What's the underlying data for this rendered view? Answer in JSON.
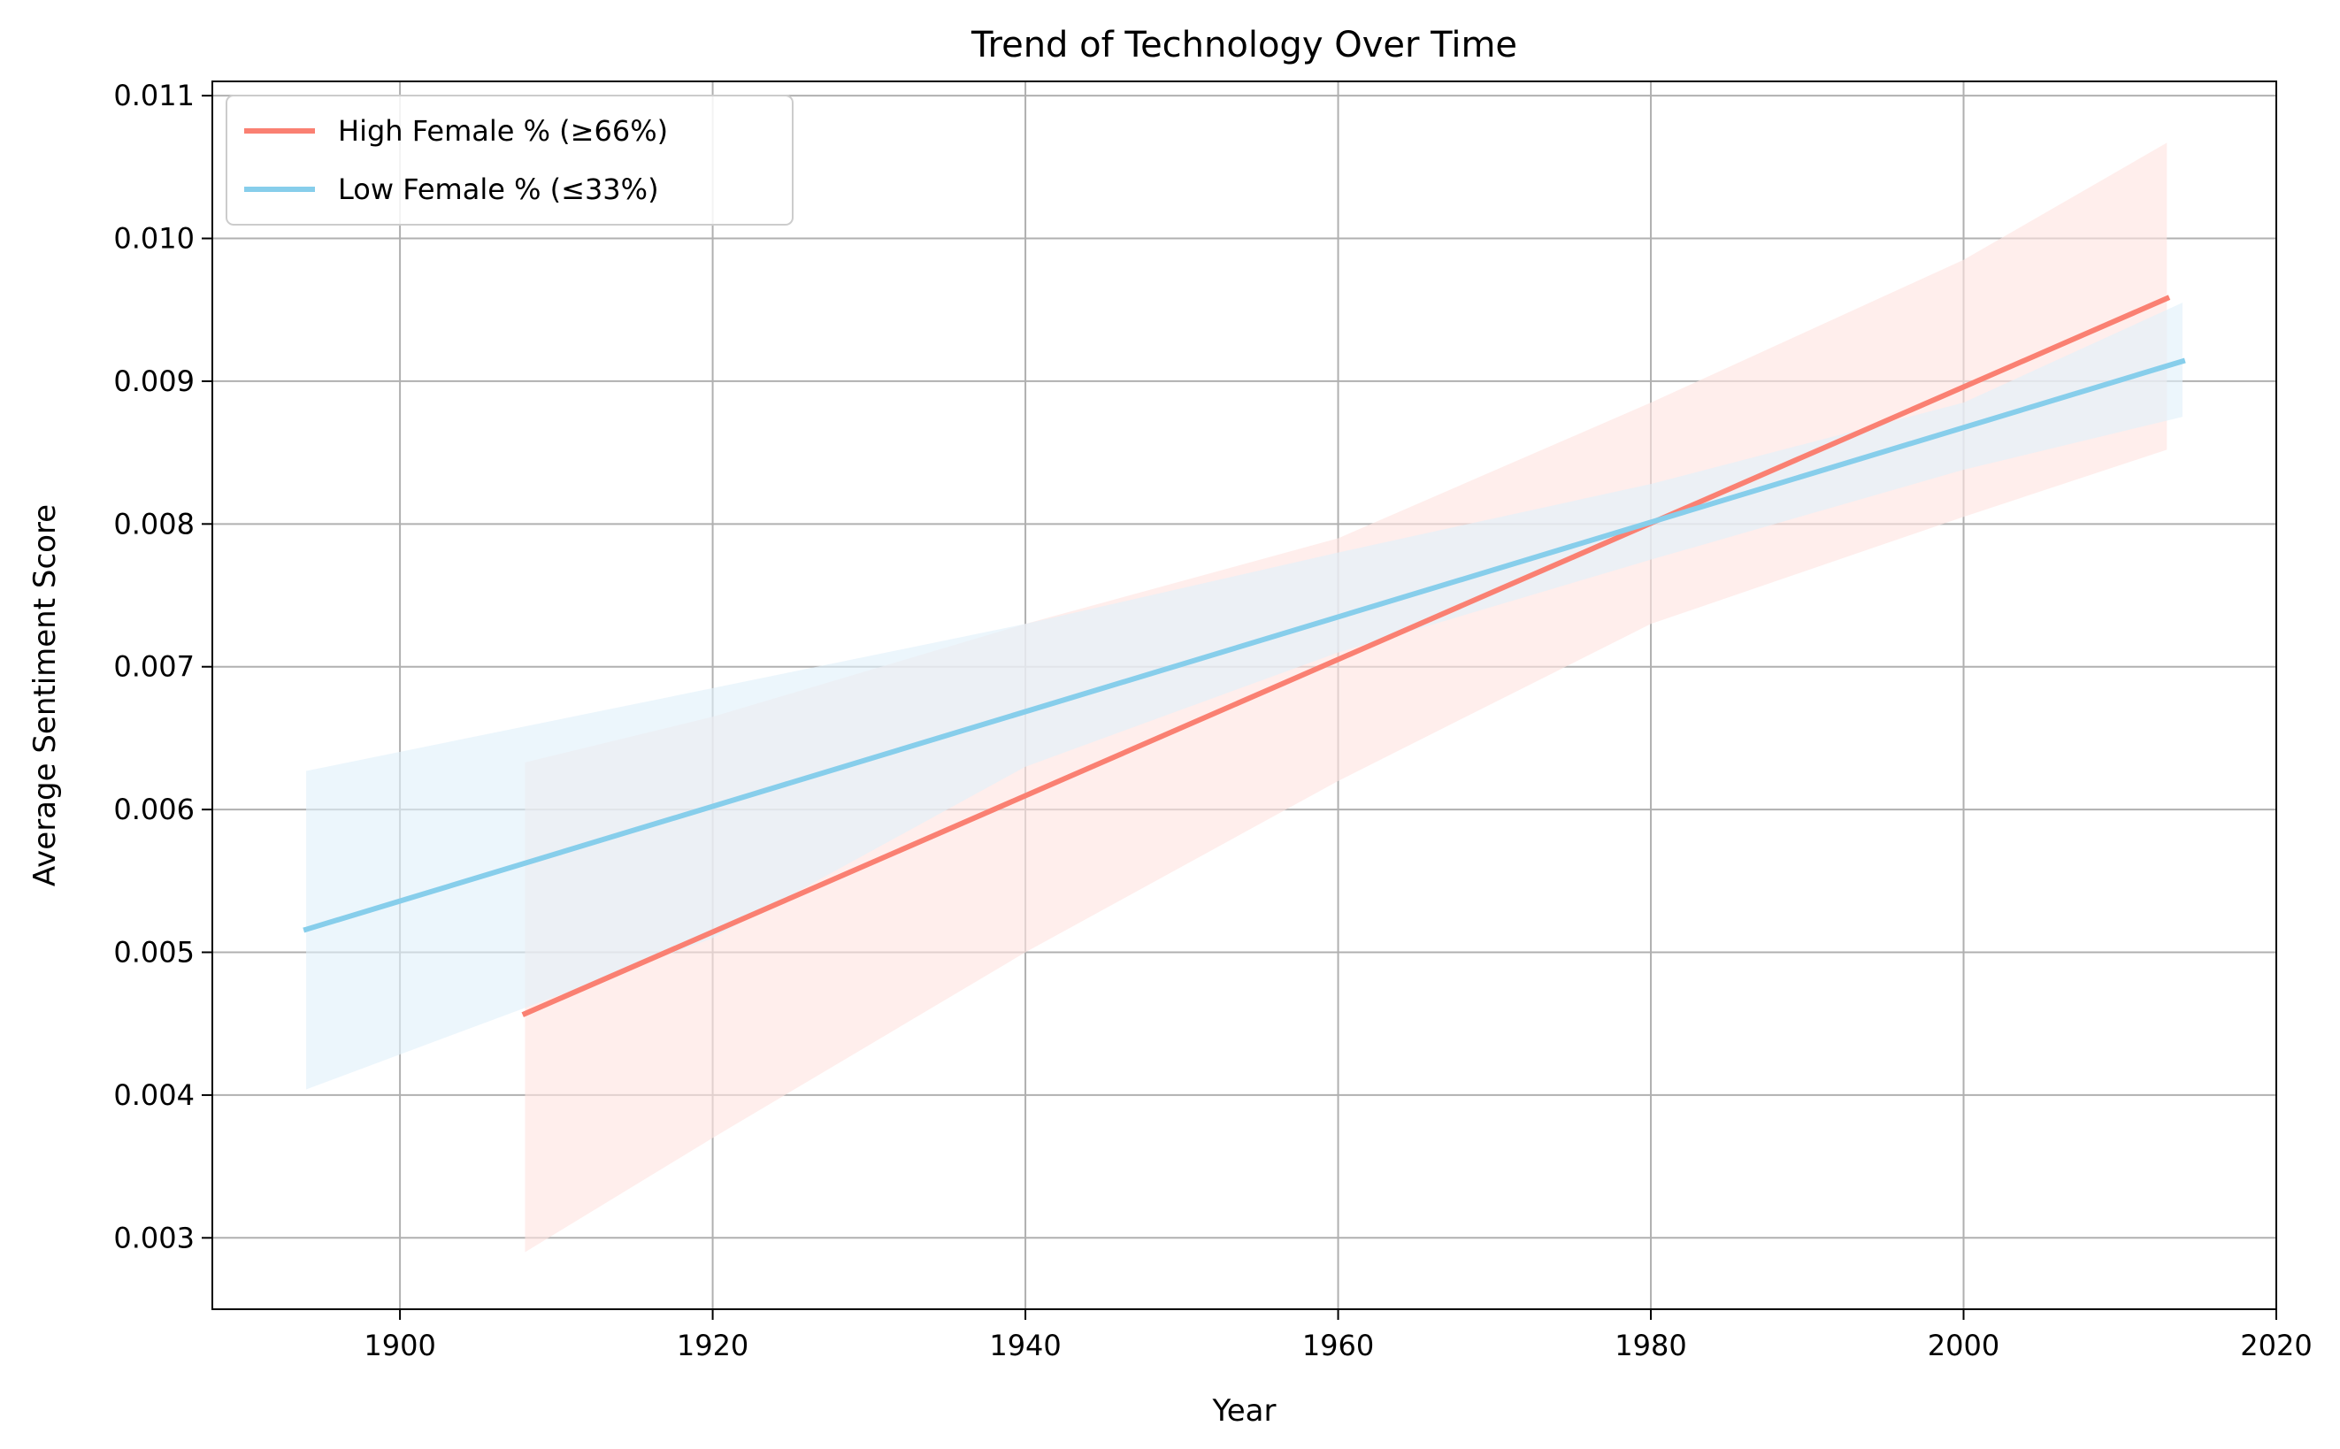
{
  "chart_data": {
    "type": "line",
    "title": "Trend of Technology Over Time",
    "xlabel": "Year",
    "ylabel": "Average Sentiment Score",
    "xlim": [
      1888,
      2020
    ],
    "ylim": [
      0.0025,
      0.0111
    ],
    "xticks": [
      1900,
      1920,
      1940,
      1960,
      1980,
      2000,
      2020
    ],
    "yticks": [
      0.003,
      0.004,
      0.005,
      0.006,
      0.007,
      0.008,
      0.009,
      0.01,
      0.011
    ],
    "ytick_labels": [
      "0.003",
      "0.004",
      "0.005",
      "0.006",
      "0.007",
      "0.008",
      "0.009",
      "0.010",
      "0.011"
    ],
    "grid": true,
    "legend_position": "upper-left",
    "series": [
      {
        "name": "High Female % (≥66%)",
        "color": "#fa8072",
        "band_color": "#ffe4e1",
        "x": [
          1908,
          2013
        ],
        "y": [
          0.00457,
          0.00958
        ],
        "band_x": [
          1908,
          1920,
          1940,
          1960,
          1980,
          2000,
          2013
        ],
        "band_lower": [
          0.0029,
          0.0037,
          0.005,
          0.0062,
          0.0073,
          0.00805,
          0.00852
        ],
        "band_upper": [
          0.00633,
          0.00665,
          0.0073,
          0.0079,
          0.00885,
          0.00985,
          0.01067
        ]
      },
      {
        "name": "Low Female % (≤33%)",
        "color": "#87ceeb",
        "band_color": "#e0f0fa",
        "x": [
          1894,
          2014
        ],
        "y": [
          0.00516,
          0.00914
        ],
        "band_x": [
          1894,
          1920,
          1940,
          1960,
          1980,
          2000,
          2014
        ],
        "band_lower": [
          0.00404,
          0.0051,
          0.0063,
          0.0071,
          0.00775,
          0.00838,
          0.00875
        ],
        "band_upper": [
          0.00627,
          0.00685,
          0.0073,
          0.0078,
          0.00828,
          0.00885,
          0.00955
        ]
      }
    ]
  }
}
